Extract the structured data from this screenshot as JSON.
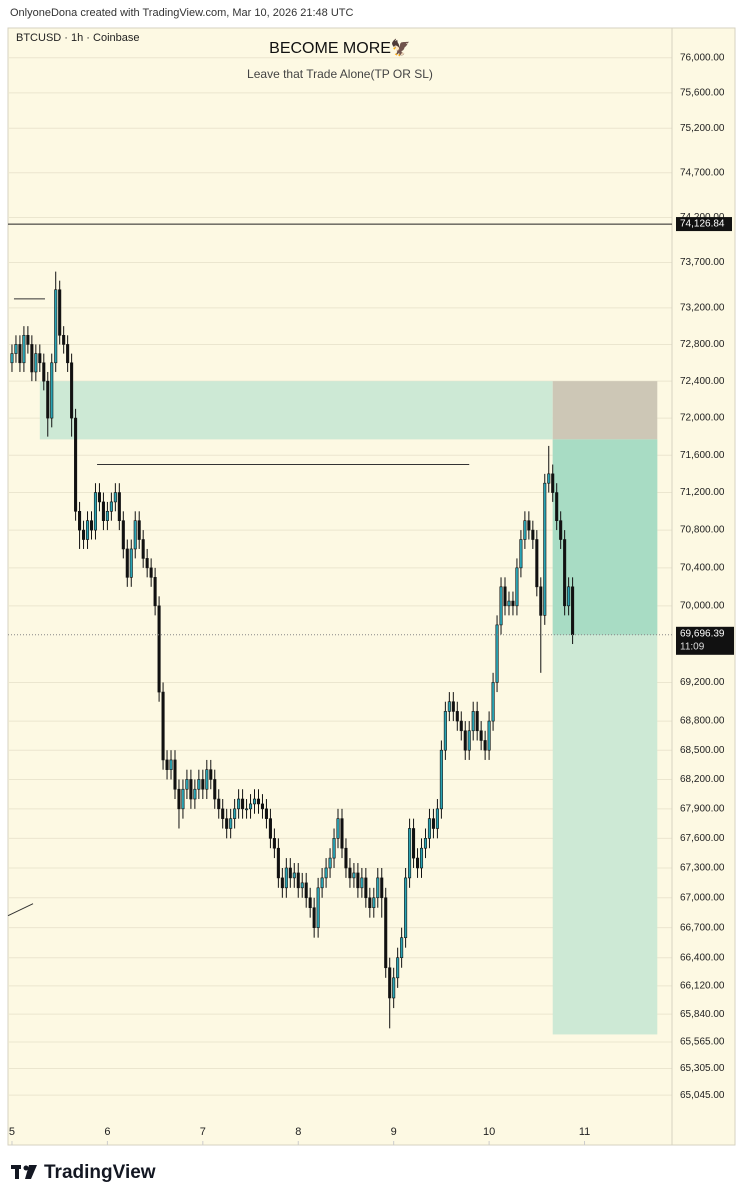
{
  "header": "OnlyoneDona created with TradingView.com, Mar 10, 2026 21:48 UTC",
  "footer_logo": "TradingView",
  "chart_data": {
    "type": "candlestick",
    "symbol": "BTCUSD · 1h · Coinbase",
    "title": "BECOME MORE🦅",
    "subtitle": "Leave that Trade Alone(TP OR SL)",
    "log_scale": true,
    "grid": true,
    "up_color": "#2aa3b3",
    "down_color": "#111111",
    "background": "#fdf9e3",
    "xlim": [
      -1,
      166
    ],
    "xticks": [
      {
        "value": 0,
        "label": "5"
      },
      {
        "value": 24,
        "label": "6"
      },
      {
        "value": 48,
        "label": "7"
      },
      {
        "value": 72,
        "label": "8"
      },
      {
        "value": 96,
        "label": "9"
      },
      {
        "value": 120,
        "label": "10"
      },
      {
        "value": 144,
        "label": "11"
      }
    ],
    "ylim": [
      64560,
      76340
    ],
    "yticks": [
      {
        "value": 76000,
        "label": "76,000.00"
      },
      {
        "value": 75600,
        "label": "75,600.00"
      },
      {
        "value": 75200,
        "label": "75,200.00"
      },
      {
        "value": 74700,
        "label": "74,700.00"
      },
      {
        "value": 74200,
        "label": "74,200.00"
      },
      {
        "value": 73700,
        "label": "73,700.00"
      },
      {
        "value": 73200,
        "label": "73,200.00"
      },
      {
        "value": 72800,
        "label": "72,800.00"
      },
      {
        "value": 72400,
        "label": "72,400.00"
      },
      {
        "value": 72000,
        "label": "72,000.00"
      },
      {
        "value": 71600,
        "label": "71,600.00"
      },
      {
        "value": 71200,
        "label": "71,200.00"
      },
      {
        "value": 70800,
        "label": "70,800.00"
      },
      {
        "value": 70400,
        "label": "70,400.00"
      },
      {
        "value": 70000,
        "label": "70,000.00"
      },
      {
        "value": 69200,
        "label": "69,200.00"
      },
      {
        "value": 68800,
        "label": "68,800.00"
      },
      {
        "value": 68500,
        "label": "68,500.00"
      },
      {
        "value": 68200,
        "label": "68,200.00"
      },
      {
        "value": 67900,
        "label": "67,900.00"
      },
      {
        "value": 67600,
        "label": "67,600.00"
      },
      {
        "value": 67300,
        "label": "67,300.00"
      },
      {
        "value": 67000,
        "label": "67,000.00"
      },
      {
        "value": 66700,
        "label": "66,700.00"
      },
      {
        "value": 66400,
        "label": "66,400.00"
      },
      {
        "value": 66120,
        "label": "66,120.00"
      },
      {
        "value": 65840,
        "label": "65,840.00"
      },
      {
        "value": 65565,
        "label": "65,565.00"
      },
      {
        "value": 65305,
        "label": "65,305.00"
      },
      {
        "value": 65045,
        "label": "65,045.00"
      }
    ],
    "x": [
      0,
      1,
      2,
      3,
      4,
      5,
      6,
      7,
      8,
      9,
      10,
      11,
      12,
      13,
      14,
      15,
      16,
      17,
      18,
      19,
      20,
      21,
      22,
      23,
      24,
      25,
      26,
      27,
      28,
      29,
      30,
      31,
      32,
      33,
      34,
      35,
      36,
      37,
      38,
      39,
      40,
      41,
      42,
      43,
      44,
      45,
      46,
      47,
      48,
      49,
      50,
      51,
      52,
      53,
      54,
      55,
      56,
      57,
      58,
      59,
      60,
      61,
      62,
      63,
      64,
      65,
      66,
      67,
      68,
      69,
      70,
      71,
      72,
      73,
      74,
      75,
      76,
      77,
      78,
      79,
      80,
      81,
      82,
      83,
      84,
      85,
      86,
      87,
      88,
      89,
      90,
      91,
      92,
      93,
      94,
      95,
      96,
      97,
      98,
      99,
      100,
      101,
      102,
      103,
      104,
      105,
      106,
      107,
      108,
      109,
      110,
      111,
      112,
      113,
      114,
      115,
      116,
      117,
      118,
      119,
      120,
      121,
      122,
      123,
      124,
      125,
      126,
      127,
      128,
      129,
      130,
      131,
      132,
      133,
      134,
      135,
      136,
      137,
      138,
      139,
      140,
      141
    ],
    "open": [
      72600,
      72700,
      72800,
      72600,
      72900,
      72800,
      72500,
      72700,
      72600,
      72400,
      72000,
      72600,
      73400,
      72900,
      72800,
      72600,
      72000,
      71000,
      70800,
      70700,
      70900,
      70800,
      71200,
      71100,
      70900,
      71000,
      71100,
      71200,
      70900,
      70600,
      70300,
      70600,
      70900,
      70700,
      70500,
      70400,
      70300,
      70000,
      69100,
      68400,
      68300,
      68400,
      68100,
      67900,
      68100,
      68200,
      68000,
      68100,
      68200,
      68100,
      68300,
      68200,
      68000,
      67900,
      67800,
      67700,
      67800,
      67900,
      68000,
      67900,
      67900,
      67950,
      68000,
      67950,
      67900,
      67800,
      67600,
      67500,
      67200,
      67100,
      67300,
      67200,
      67250,
      67100,
      67150,
      67000,
      66900,
      66700,
      67100,
      67200,
      67300,
      67400,
      67600,
      67800,
      67500,
      67300,
      67200,
      67250,
      67100,
      67200,
      67000,
      66900,
      67000,
      67200,
      67000,
      66300,
      66000,
      66200,
      66400,
      66600,
      67200,
      67700,
      67400,
      67300,
      67500,
      67600,
      67800,
      67700,
      67900,
      68500,
      68900,
      69000,
      68900,
      68800,
      68700,
      68500,
      68700,
      68900,
      68700,
      68600,
      68500,
      68800,
      69200,
      69800,
      70200,
      70000,
      70050,
      70000,
      70400,
      70700,
      70900,
      70800,
      70700,
      70200,
      69900,
      71300,
      71400,
      71200,
      70900,
      70700,
      70000,
      70200
    ],
    "high": [
      72800,
      72900,
      72900,
      73000,
      73000,
      72900,
      72800,
      72800,
      72700,
      72500,
      72700,
      73600,
      73500,
      73000,
      72900,
      72700,
      72100,
      71100,
      70900,
      71000,
      71000,
      71300,
      71300,
      71200,
      71100,
      71200,
      71300,
      71300,
      71000,
      70700,
      70700,
      71000,
      71000,
      70800,
      70600,
      70500,
      70400,
      70100,
      69200,
      68500,
      68500,
      68500,
      68200,
      68200,
      68300,
      68300,
      68200,
      68300,
      68300,
      68400,
      68400,
      68300,
      68100,
      68000,
      67900,
      67900,
      68000,
      68100,
      68100,
      68000,
      68050,
      68100,
      68100,
      68050,
      68000,
      67900,
      67700,
      67600,
      67300,
      67400,
      67400,
      67350,
      67350,
      67250,
      67250,
      67100,
      67000,
      67200,
      67300,
      67400,
      67500,
      67700,
      67900,
      67900,
      67600,
      67400,
      67350,
      67350,
      67300,
      67300,
      67100,
      67100,
      67300,
      67300,
      67100,
      66400,
      66300,
      66500,
      66700,
      67300,
      67800,
      67800,
      67500,
      67600,
      67700,
      67900,
      67900,
      68000,
      68600,
      69000,
      69100,
      69100,
      69000,
      68900,
      68800,
      68800,
      69000,
      69000,
      68800,
      68700,
      68900,
      69300,
      69900,
      70300,
      70300,
      70150,
      70150,
      70500,
      70800,
      71000,
      71000,
      70900,
      70800,
      70300,
      71400,
      71700,
      71500,
      71300,
      71000,
      70800,
      70300,
      70300
    ],
    "low": [
      72500,
      72600,
      72500,
      72500,
      72700,
      72400,
      72400,
      72500,
      72300,
      71800,
      71900,
      72500,
      72800,
      72700,
      72500,
      71800,
      70900,
      70600,
      70600,
      70600,
      70700,
      70700,
      71000,
      70800,
      70800,
      70900,
      71000,
      70800,
      70500,
      70200,
      70200,
      70500,
      70600,
      70400,
      70300,
      70200,
      69900,
      69000,
      68300,
      68200,
      68200,
      68000,
      67700,
      67800,
      68000,
      67900,
      67900,
      68000,
      68000,
      68000,
      68100,
      67900,
      67800,
      67700,
      67600,
      67600,
      67700,
      67800,
      67800,
      67800,
      67800,
      67850,
      67850,
      67800,
      67700,
      67500,
      67400,
      67100,
      67000,
      67000,
      67100,
      67100,
      67000,
      67000,
      66900,
      66800,
      66600,
      66600,
      67000,
      67100,
      67200,
      67300,
      67500,
      67400,
      67200,
      67100,
      67100,
      67000,
      67000,
      66900,
      66800,
      66800,
      66900,
      66800,
      66200,
      65700,
      65900,
      66100,
      66300,
      66500,
      67100,
      67300,
      67200,
      67200,
      67400,
      67500,
      67600,
      67600,
      67800,
      68400,
      68800,
      68800,
      68700,
      68600,
      68400,
      68400,
      68600,
      68600,
      68500,
      68400,
      68400,
      68700,
      69100,
      69700,
      69900,
      69900,
      69900,
      69900,
      70300,
      70600,
      70700,
      70600,
      70100,
      69300,
      69800,
      71200,
      71100,
      70800,
      70600,
      69900,
      69900,
      69600
    ],
    "close": [
      72700,
      72800,
      72600,
      72900,
      72800,
      72500,
      72700,
      72600,
      72400,
      72000,
      72600,
      73400,
      72900,
      72800,
      72600,
      72000,
      71000,
      70800,
      70700,
      70900,
      70800,
      71200,
      71100,
      70900,
      71000,
      71100,
      71200,
      70900,
      70600,
      70300,
      70600,
      70900,
      70700,
      70500,
      70400,
      70300,
      70000,
      69100,
      68400,
      68300,
      68400,
      68100,
      67900,
      68100,
      68200,
      68000,
      68100,
      68200,
      68100,
      68300,
      68200,
      68000,
      67900,
      67800,
      67700,
      67800,
      67900,
      68000,
      67900,
      67900,
      67950,
      68000,
      67950,
      67900,
      67800,
      67600,
      67500,
      67200,
      67100,
      67300,
      67200,
      67250,
      67100,
      67150,
      67000,
      66900,
      66700,
      67100,
      67200,
      67300,
      67400,
      67600,
      67800,
      67500,
      67300,
      67200,
      67250,
      67100,
      67200,
      67000,
      66900,
      67000,
      67200,
      67000,
      66300,
      66000,
      66200,
      66400,
      66600,
      67200,
      67700,
      67400,
      67300,
      67500,
      67600,
      67800,
      67700,
      67900,
      68500,
      68900,
      69000,
      68900,
      68800,
      68700,
      68500,
      68700,
      68900,
      68700,
      68600,
      68500,
      68800,
      69200,
      69800,
      70200,
      70000,
      70050,
      70000,
      70400,
      70700,
      70900,
      70800,
      70700,
      70200,
      69900,
      71300,
      71400,
      71200,
      70900,
      70700,
      70000,
      70200,
      69696.39
    ],
    "last_price_label": "69,696.39",
    "countdown": "11:09",
    "hline": {
      "value": 74126.84,
      "label": "74,126.84"
    },
    "zone": {
      "x0": 7,
      "x1": 136,
      "top": 72400,
      "bottom": 71770,
      "color": "#cde9d5"
    },
    "position": {
      "x0": 136,
      "x1": 162.3,
      "stop": 72400,
      "entry": 71770,
      "target": 65640,
      "stop_color": "#cdc7b6",
      "profit_color": "#cde9d5",
      "open_profit_color": "#a8dcc4"
    },
    "lines": [
      {
        "x": [
          21.4,
          115
        ],
        "y": [
          71500,
          71500
        ]
      },
      {
        "x": [
          0.5,
          8.3
        ],
        "y": [
          73300,
          73300
        ]
      },
      {
        "x": [
          -1,
          5.3
        ],
        "y": [
          66820,
          66940
        ]
      }
    ]
  }
}
